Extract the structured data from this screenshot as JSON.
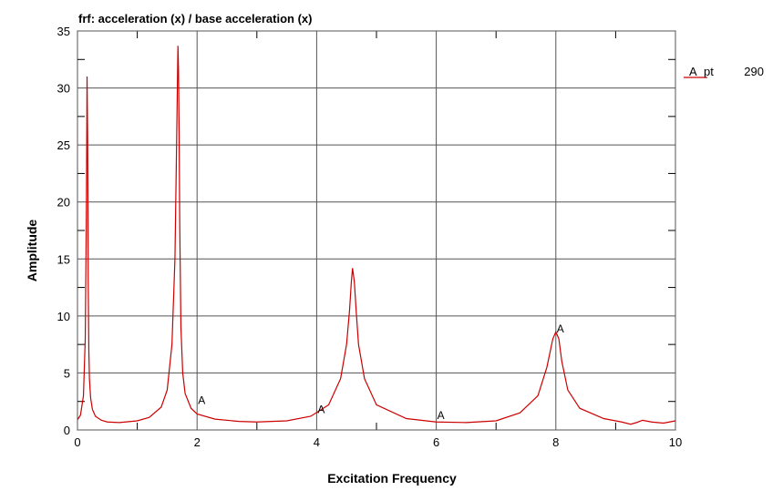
{
  "chart_data": {
    "type": "line",
    "title": "frf: acceleration (x) / base acceleration (x)",
    "xlabel": "Excitation Frequency",
    "ylabel": "Amplitude",
    "xlim": [
      0,
      10
    ],
    "ylim": [
      0,
      35
    ],
    "xticks": [
      "0",
      "2",
      "4",
      "6",
      "8",
      "10"
    ],
    "yticks": [
      "0",
      "5",
      "10",
      "15",
      "20",
      "25",
      "30",
      "35"
    ],
    "grid": true,
    "legend": {
      "placement": "right",
      "marker": "A",
      "label": "pt",
      "value": "290"
    },
    "series_color": "#cc0000",
    "series": [
      {
        "name": "pt 290",
        "x": [
          0.0,
          0.05,
          0.1,
          0.13,
          0.15,
          0.16,
          0.17,
          0.18,
          0.19,
          0.2,
          0.22,
          0.25,
          0.3,
          0.4,
          0.5,
          0.7,
          1.0,
          1.2,
          1.4,
          1.5,
          1.58,
          1.63,
          1.66,
          1.68,
          1.69,
          1.7,
          1.71,
          1.73,
          1.76,
          1.8,
          1.9,
          2.0,
          2.3,
          2.7,
          3.0,
          3.5,
          3.9,
          4.2,
          4.4,
          4.5,
          4.55,
          4.58,
          4.6,
          4.63,
          4.66,
          4.7,
          4.8,
          5.0,
          5.5,
          6.0,
          6.5,
          7.0,
          7.4,
          7.7,
          7.85,
          7.95,
          8.0,
          8.05,
          8.1,
          8.2,
          8.4,
          8.8,
          9.1,
          9.25,
          9.35,
          9.45,
          9.6,
          9.8,
          10.0
        ],
        "y": [
          0.9,
          1.3,
          3.0,
          8.0,
          20.0,
          31.0,
          25.5,
          13.0,
          7.0,
          4.5,
          2.8,
          1.8,
          1.2,
          0.85,
          0.7,
          0.65,
          0.8,
          1.1,
          2.0,
          3.5,
          7.5,
          15.0,
          26.0,
          33.7,
          31.5,
          26.0,
          18.0,
          9.0,
          5.0,
          3.2,
          1.9,
          1.4,
          0.95,
          0.75,
          0.7,
          0.8,
          1.2,
          2.2,
          4.5,
          7.5,
          10.5,
          13.0,
          14.2,
          13.0,
          10.5,
          7.5,
          4.5,
          2.2,
          1.0,
          0.7,
          0.65,
          0.8,
          1.5,
          3.0,
          5.5,
          8.0,
          8.6,
          8.0,
          6.0,
          3.5,
          1.9,
          1.0,
          0.7,
          0.5,
          0.65,
          0.85,
          0.7,
          0.6,
          0.8
        ]
      }
    ],
    "point_markers": [
      {
        "label": "A",
        "x": 2.0,
        "y": 2.1
      },
      {
        "label": "A",
        "x": 4.0,
        "y": 1.3
      },
      {
        "label": "A",
        "x": 6.0,
        "y": 0.8
      },
      {
        "label": "A",
        "x": 8.0,
        "y": 8.4
      }
    ]
  }
}
